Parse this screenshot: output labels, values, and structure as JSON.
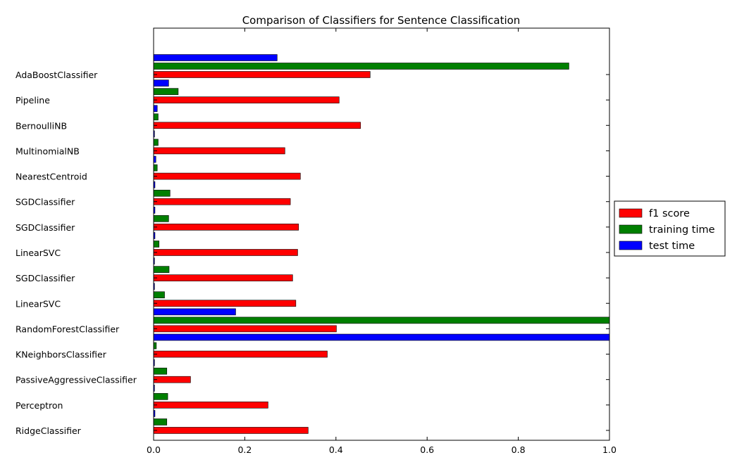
{
  "chart_data": {
    "type": "bar",
    "orientation": "horizontal",
    "title": "Comparison of Classifiers for Sentence Classification",
    "xlabel": "",
    "ylabel": "",
    "xlim": [
      0,
      1.0
    ],
    "x_ticks": [
      "0.0",
      "0.2",
      "0.4",
      "0.6",
      "0.8",
      "1.0"
    ],
    "grid": false,
    "legend_position": "right",
    "categories": [
      "AdaBoostClassifier",
      "Pipeline",
      "BernoulliNB",
      "MultinomialNB",
      "NearestCentroid",
      "SGDClassifier",
      "SGDClassifier",
      "LinearSVC",
      "SGDClassifier",
      "LinearSVC",
      "RandomForestClassifier",
      "KNeighborsClassifier",
      "PassiveAggressiveClassifier",
      "Perceptron",
      "RidgeClassifier"
    ],
    "series": [
      {
        "name": "f1 score",
        "color": "#ff0000",
        "values": [
          0.475,
          0.407,
          0.454,
          0.288,
          0.322,
          0.3,
          0.318,
          0.316,
          0.305,
          0.312,
          0.401,
          0.381,
          0.081,
          0.251,
          0.339
        ]
      },
      {
        "name": "training time",
        "color": "#007f00",
        "values": [
          0.911,
          0.054,
          0.01,
          0.01,
          0.008,
          0.036,
          0.033,
          0.012,
          0.034,
          0.024,
          1.0,
          0.006,
          0.029,
          0.031,
          0.029
        ]
      },
      {
        "name": "test time",
        "color": "#0000ff",
        "values": [
          0.271,
          0.033,
          0.008,
          0.002,
          0.005,
          0.003,
          0.003,
          0.003,
          0.002,
          0.002,
          0.18,
          1.0,
          0.002,
          0.002,
          0.003
        ]
      }
    ]
  }
}
